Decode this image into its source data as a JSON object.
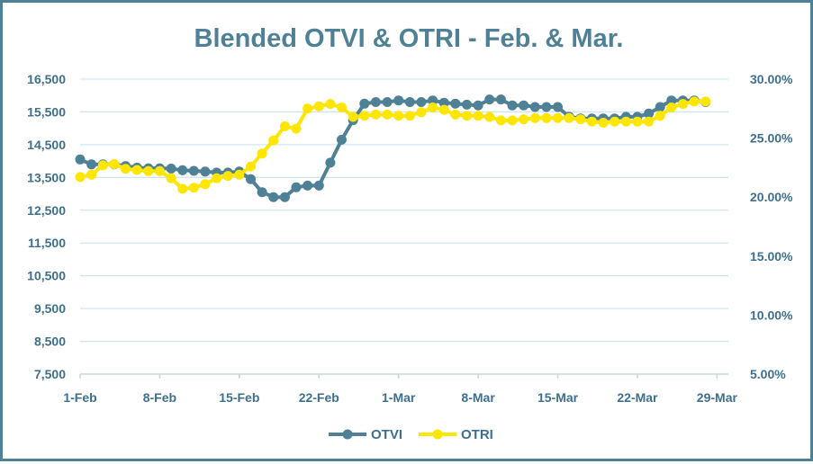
{
  "chart_data": {
    "type": "line",
    "title": "Blended OTVI & OTRI - Feb. & Mar.",
    "x_ticks": [
      "1-Feb",
      "8-Feb",
      "15-Feb",
      "22-Feb",
      "1-Mar",
      "8-Mar",
      "15-Mar",
      "22-Mar",
      "29-Mar"
    ],
    "x_range": [
      1,
      58
    ],
    "y_left": {
      "range": [
        7500,
        16500
      ],
      "ticks": [
        7500,
        8500,
        9500,
        10500,
        11500,
        12500,
        13500,
        14500,
        15500,
        16500
      ],
      "tick_labels": [
        "7,500",
        "8,500",
        "9,500",
        "10,500",
        "11,500",
        "12,500",
        "13,500",
        "14,500",
        "15,500",
        "16,500"
      ]
    },
    "y_right": {
      "range": [
        5,
        30
      ],
      "ticks": [
        5,
        10,
        15,
        20,
        25,
        30
      ],
      "tick_labels": [
        "5.00%",
        "10.00%",
        "15.00%",
        "20.00%",
        "25.00%",
        "30.00%"
      ]
    },
    "series": [
      {
        "name": "OTVI",
        "axis": "left",
        "color": "#4f8196",
        "x": [
          1,
          2,
          3,
          4,
          5,
          6,
          7,
          8,
          9,
          10,
          11,
          12,
          13,
          14,
          15,
          16,
          17,
          18,
          19,
          20,
          21,
          22,
          23,
          24,
          25,
          26,
          27,
          28,
          29,
          30,
          31,
          32,
          33,
          34,
          35,
          36,
          37,
          38,
          39,
          40,
          41,
          42,
          43,
          44,
          45,
          46,
          47,
          48,
          49,
          50,
          51,
          52,
          53,
          54,
          55,
          56
        ],
        "values": [
          14050,
          13900,
          13900,
          13900,
          13850,
          13800,
          13780,
          13780,
          13770,
          13720,
          13700,
          13680,
          13650,
          13650,
          13680,
          13450,
          13050,
          12900,
          12900,
          13200,
          13250,
          13250,
          13950,
          14650,
          15250,
          15750,
          15800,
          15800,
          15850,
          15800,
          15800,
          15850,
          15780,
          15750,
          15720,
          15700,
          15880,
          15880,
          15700,
          15700,
          15650,
          15650,
          15650,
          15350,
          15300,
          15300,
          15300,
          15300,
          15350,
          15350,
          15450,
          15650,
          15850,
          15850,
          15850,
          15800
        ]
      },
      {
        "name": "OTRI",
        "axis": "right",
        "color": "#ffe600",
        "x": [
          1,
          2,
          3,
          4,
          5,
          6,
          7,
          8,
          9,
          10,
          11,
          12,
          13,
          14,
          15,
          16,
          17,
          18,
          19,
          20,
          21,
          22,
          23,
          24,
          25,
          26,
          27,
          28,
          29,
          30,
          31,
          32,
          33,
          34,
          35,
          36,
          37,
          38,
          39,
          40,
          41,
          42,
          43,
          44,
          45,
          46,
          47,
          48,
          49,
          50,
          51,
          52,
          53,
          54,
          55,
          56
        ],
        "values": [
          21.7,
          21.9,
          22.7,
          22.8,
          22.4,
          22.3,
          22.2,
          22.2,
          21.6,
          20.7,
          20.8,
          21.1,
          21.6,
          21.8,
          21.9,
          22.6,
          23.7,
          24.8,
          26.0,
          25.8,
          27.5,
          27.7,
          27.9,
          27.6,
          26.8,
          26.9,
          27.0,
          27.0,
          26.9,
          26.9,
          27.2,
          27.6,
          27.4,
          27.0,
          26.9,
          26.9,
          26.8,
          26.5,
          26.5,
          26.6,
          26.7,
          26.7,
          26.7,
          26.7,
          26.6,
          26.4,
          26.3,
          26.4,
          26.4,
          26.4,
          26.4,
          26.9,
          27.6,
          27.9,
          28.1,
          28.1
        ]
      }
    ],
    "legend": {
      "position": "bottom-center",
      "entries": [
        "OTVI",
        "OTRI"
      ]
    }
  }
}
